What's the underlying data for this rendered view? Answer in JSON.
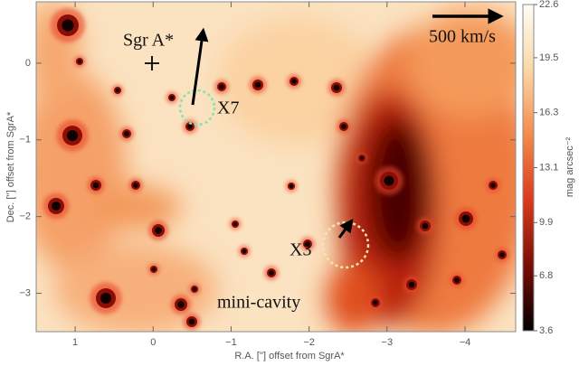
{
  "chart_data": {
    "type": "image",
    "xlabel": "R.A. [''] offset from SgrA*",
    "ylabel": "Dec. [''] offset from SgrA*",
    "xlim": [
      1.5,
      -4.65
    ],
    "xticks": [
      1,
      0,
      {
        "value": -1,
        "label": "−1"
      },
      {
        "value": -2,
        "label": "−2"
      },
      {
        "value": -3,
        "label": "−3"
      },
      {
        "value": -4,
        "label": "−4"
      }
    ],
    "ylim": [
      -3.5,
      0.8
    ],
    "yticks": [
      0,
      {
        "value": -1,
        "label": "−1"
      },
      {
        "value": -2,
        "label": "−2"
      },
      {
        "value": -3,
        "label": "−3"
      }
    ],
    "colorbar": {
      "label": "mag arcsec⁻²",
      "lim": [
        3.6,
        22.6
      ],
      "ticks": [
        22.6,
        19.5,
        16.3,
        13.1,
        9.9,
        6.8,
        3.6
      ]
    },
    "annotations": {
      "source": "Sgr A*",
      "x7": "X7",
      "x3": "X3",
      "region": "mini-cavity",
      "scale": "500 km/s"
    }
  }
}
